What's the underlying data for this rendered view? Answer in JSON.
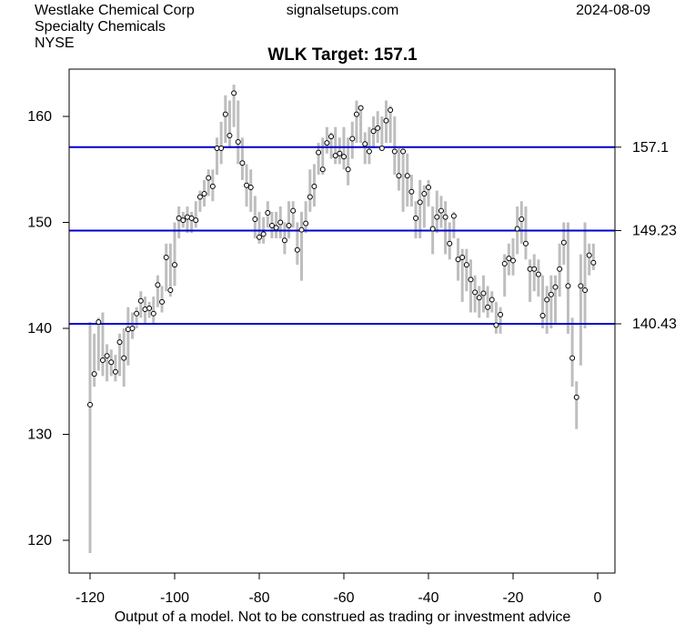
{
  "header": {
    "company": "Westlake Chemical Corp",
    "sector": "Specialty Chemicals",
    "exchange": "NYSE",
    "site": "signalsetups.com",
    "date": "2024-08-09"
  },
  "footer": "Output of a model. Not to be construed as trading or investment advice",
  "colors": {
    "range_bar": "#bebebe",
    "target_line": "#0000cd",
    "point": "#000000"
  },
  "chart_data": {
    "type": "range",
    "title": "WLK Target: 157.1",
    "xlabel": "",
    "ylabel": "",
    "xlim": [
      -120,
      0
    ],
    "ylim": [
      117,
      164
    ],
    "x_ticks": [
      -120,
      -100,
      -80,
      -60,
      -40,
      -20,
      0
    ],
    "y_ticks": [
      120,
      130,
      140,
      150,
      160
    ],
    "grid": false,
    "levels": [
      {
        "value": 157.1,
        "label": "157.1"
      },
      {
        "value": 149.23,
        "label": "149.23"
      },
      {
        "value": 140.43,
        "label": "140.43"
      }
    ],
    "points": [
      [
        -120,
        118.8,
        140.6,
        132.8
      ],
      [
        -119,
        134.5,
        139.5,
        135.7
      ],
      [
        -118,
        136,
        141,
        140.6
      ],
      [
        -117,
        135.5,
        141.5,
        137
      ],
      [
        -116,
        135,
        138.5,
        137.4
      ],
      [
        -115,
        135.5,
        138,
        136.8
      ],
      [
        -114,
        135,
        137.5,
        135.9
      ],
      [
        -113,
        135.5,
        139.5,
        138.7
      ],
      [
        -112,
        134.5,
        140,
        137.2
      ],
      [
        -111,
        136.5,
        142,
        139.9
      ],
      [
        -110,
        139,
        141.5,
        140
      ],
      [
        -109,
        140,
        142,
        141.4
      ],
      [
        -108,
        141,
        143.5,
        142.6
      ],
      [
        -107,
        140.5,
        143,
        141.8
      ],
      [
        -106,
        141,
        142.5,
        141.9
      ],
      [
        -105,
        140.5,
        143,
        141.4
      ],
      [
        -104,
        142,
        145,
        144.1
      ],
      [
        -103,
        141.5,
        144,
        142.5
      ],
      [
        -102,
        143.5,
        148,
        146.7
      ],
      [
        -101,
        143,
        148,
        143.6
      ],
      [
        -100,
        144,
        150,
        146
      ],
      [
        -99,
        148.5,
        151.5,
        150.4
      ],
      [
        -98,
        149.5,
        151,
        150.2
      ],
      [
        -97,
        149,
        151.5,
        150.5
      ],
      [
        -96,
        149,
        151,
        150.4
      ],
      [
        -95,
        149.5,
        152,
        150.2
      ],
      [
        -94,
        151,
        153,
        152.4
      ],
      [
        -93,
        151.5,
        154,
        152.7
      ],
      [
        -92,
        152.5,
        155,
        154.2
      ],
      [
        -91,
        152,
        155,
        153.4
      ],
      [
        -90,
        154.5,
        158,
        157
      ],
      [
        -89,
        155.5,
        159.5,
        157
      ],
      [
        -88,
        157.5,
        162,
        160.2
      ],
      [
        -87,
        157,
        161.5,
        158.2
      ],
      [
        -86,
        159,
        163,
        162.2
      ],
      [
        -85,
        155.5,
        161.5,
        157.6
      ],
      [
        -84,
        154,
        158,
        155.6
      ],
      [
        -83,
        151.5,
        155.5,
        153.5
      ],
      [
        -82,
        151,
        155,
        153.3
      ],
      [
        -81,
        148.5,
        152.5,
        150.3
      ],
      [
        -80,
        148,
        151,
        148.6
      ],
      [
        -79,
        148,
        150.5,
        148.9
      ],
      [
        -78,
        149.5,
        152,
        150.9
      ],
      [
        -77,
        148.5,
        151,
        149.7
      ],
      [
        -76,
        148.5,
        151,
        149.5
      ],
      [
        -75,
        148.5,
        151.5,
        150
      ],
      [
        -74,
        147,
        150,
        148.3
      ],
      [
        -73,
        148.5,
        152,
        149.7
      ],
      [
        -72,
        149.5,
        152,
        151.1
      ],
      [
        -71,
        146,
        150,
        147.4
      ],
      [
        -70,
        144.5,
        151,
        149.3
      ],
      [
        -69,
        149,
        152,
        149.9
      ],
      [
        -68,
        151,
        155,
        152.4
      ],
      [
        -67,
        151.5,
        155.5,
        153.4
      ],
      [
        -66,
        154.5,
        157.5,
        156.6
      ],
      [
        -65,
        154.5,
        158,
        155
      ],
      [
        -64,
        156.5,
        159,
        157.5
      ],
      [
        -63,
        156,
        158.5,
        158.1
      ],
      [
        -62,
        155.5,
        159,
        156.3
      ],
      [
        -61,
        155.5,
        158,
        156.5
      ],
      [
        -60,
        155,
        159,
        156.2
      ],
      [
        -59,
        153.5,
        158,
        155
      ],
      [
        -58,
        156,
        159.5,
        157.9
      ],
      [
        -57,
        157.5,
        161.5,
        160.2
      ],
      [
        -56,
        157.5,
        161,
        160.8
      ],
      [
        -55,
        155.5,
        158.5,
        157.4
      ],
      [
        -54,
        155.5,
        159,
        156.7
      ],
      [
        -53,
        157,
        160,
        158.6
      ],
      [
        -52,
        157.5,
        160.5,
        158.9
      ],
      [
        -51,
        157,
        160,
        157
      ],
      [
        -50,
        157.5,
        161.5,
        159.6
      ],
      [
        -49,
        157.5,
        161,
        160.6
      ],
      [
        -48,
        154.5,
        160,
        156.7
      ],
      [
        -47,
        153,
        157,
        154.4
      ],
      [
        -46,
        151,
        157,
        156.7
      ],
      [
        -45,
        151.5,
        156.5,
        154.4
      ],
      [
        -44,
        151.5,
        154.5,
        152.9
      ],
      [
        -43,
        148.5,
        152,
        150.4
      ],
      [
        -42,
        148.5,
        154,
        151.9
      ],
      [
        -41,
        149.5,
        153.5,
        152.7
      ],
      [
        -40,
        151.5,
        154,
        153.3
      ],
      [
        -39,
        147,
        151.5,
        149.4
      ],
      [
        -38,
        149,
        153,
        150.5
      ],
      [
        -37,
        149.5,
        152.5,
        151.1
      ],
      [
        -36,
        147,
        152,
        150.5
      ],
      [
        -35,
        146.5,
        150,
        148
      ],
      [
        -34,
        148.5,
        151,
        150.6
      ],
      [
        -33,
        144.5,
        148.5,
        146.5
      ],
      [
        -32,
        142.5,
        147.5,
        146.7
      ],
      [
        -31,
        143.5,
        147.5,
        146
      ],
      [
        -30,
        141.5,
        146.5,
        144.6
      ],
      [
        -29,
        141.5,
        145,
        143.4
      ],
      [
        -28,
        141,
        144,
        142.9
      ],
      [
        -27,
        141.5,
        145,
        143.3
      ],
      [
        -26,
        141,
        144,
        142
      ],
      [
        -25,
        141.5,
        143.5,
        142.7
      ],
      [
        -24,
        139.5,
        142.5,
        140.3
      ],
      [
        -23,
        139.5,
        142,
        141.3
      ],
      [
        -22,
        143,
        147,
        146.1
      ],
      [
        -21,
        145,
        148,
        146.6
      ],
      [
        -20,
        145,
        148.5,
        146.4
      ],
      [
        -19,
        147,
        151.5,
        149.4
      ],
      [
        -18,
        148,
        152,
        150.3
      ],
      [
        -17,
        146.5,
        151.5,
        148
      ],
      [
        -16,
        142.5,
        146.5,
        145.6
      ],
      [
        -15,
        143.5,
        147,
        145.6
      ],
      [
        -14,
        143,
        146.5,
        145.1
      ],
      [
        -13,
        140,
        145,
        141.2
      ],
      [
        -12,
        139.5,
        144,
        142.7
      ],
      [
        -11,
        140,
        145,
        143.2
      ],
      [
        -10,
        140.5,
        145,
        143.9
      ],
      [
        -9,
        143,
        148,
        145.6
      ],
      [
        -8,
        146,
        150,
        148.1
      ],
      [
        -7,
        139.5,
        150,
        144
      ],
      [
        -6,
        134.5,
        141,
        137.2
      ],
      [
        -5,
        130.5,
        135,
        133.5
      ],
      [
        -4,
        136.5,
        147,
        144
      ],
      [
        -3,
        140,
        150,
        143.6
      ],
      [
        -2,
        145,
        148,
        146.9
      ],
      [
        -1,
        145.5,
        148,
        146.2
      ]
    ]
  }
}
